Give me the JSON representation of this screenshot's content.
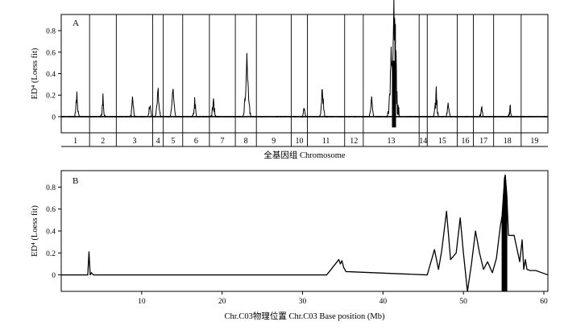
{
  "chart_data": [
    {
      "panel": "A",
      "type": "line",
      "ylabel": "ED⁴ (Loess fit)",
      "xlabel": "全基因组 Chromosome",
      "ylim": [
        -0.15,
        0.95
      ],
      "yticks": [
        0,
        0.2,
        0.4,
        0.6,
        0.8
      ],
      "ytick_labels": [
        "0",
        "0.2",
        "0.4",
        "0.6",
        "0.8"
      ],
      "chromosomes": [
        "1",
        "2",
        "3",
        "4",
        "5",
        "6",
        "7",
        "8",
        "9",
        "10",
        "11",
        "12",
        "13",
        "14",
        "15",
        "16",
        "17",
        "18",
        "19"
      ],
      "chromosome_relative_widths": [
        35,
        33,
        45,
        13,
        24,
        33,
        32,
        26,
        43,
        20,
        46,
        23,
        69,
        10,
        37,
        20,
        25,
        34,
        33
      ],
      "peaks": [
        {
          "chr": "1",
          "pos": 0.55,
          "value": 0.2,
          "noise": 0.05
        },
        {
          "chr": "2",
          "pos": 0.5,
          "value": 0.16,
          "noise": 0.06
        },
        {
          "chr": "3",
          "pos": 0.45,
          "value": 0.16,
          "noise": 0.06
        },
        {
          "chr": "3",
          "pos": 0.92,
          "value": 0.12,
          "noise": 0.04
        },
        {
          "chr": "4",
          "pos": 0.5,
          "value": 0.27,
          "noise": 0.05
        },
        {
          "chr": "5",
          "pos": 0.5,
          "value": 0.3,
          "noise": 0.04
        },
        {
          "chr": "6",
          "pos": 0.45,
          "value": 0.15,
          "noise": 0.05
        },
        {
          "chr": "7",
          "pos": 0.15,
          "value": 0.17,
          "noise": 0.07
        },
        {
          "chr": "8",
          "pos": 0.55,
          "value": 0.53,
          "noise": 0.08
        },
        {
          "chr": "10",
          "pos": 0.8,
          "value": 0.08,
          "noise": 0.03
        },
        {
          "chr": "11",
          "pos": 0.4,
          "value": 0.28,
          "noise": 0.07
        },
        {
          "chr": "13",
          "pos": 0.15,
          "value": 0.2,
          "noise": 0.04
        },
        {
          "chr": "13",
          "pos": 0.5,
          "value": 0.55,
          "noise": 0.15
        },
        {
          "chr": "13",
          "pos": 0.55,
          "value": 0.86,
          "noise": 0.4
        },
        {
          "chr": "15",
          "pos": 0.3,
          "value": 0.22,
          "noise": 0.08
        },
        {
          "chr": "15",
          "pos": 0.7,
          "value": 0.14,
          "noise": 0.04
        },
        {
          "chr": "17",
          "pos": 0.4,
          "value": 0.1,
          "noise": 0.03
        },
        {
          "chr": "18",
          "pos": 0.6,
          "value": 0.09,
          "noise": 0.04
        }
      ]
    },
    {
      "panel": "B",
      "type": "line",
      "ylabel": "ED⁴ (Loess fit)",
      "xlabel": "Chr.C03物理位置 Chr.C03 Base position (Mb)",
      "xlim": [
        0,
        60.5
      ],
      "ylim": [
        -0.15,
        0.95
      ],
      "xticks": [
        10,
        20,
        30,
        40,
        50,
        60
      ],
      "xtick_labels": [
        "10",
        "20",
        "30",
        "40",
        "50",
        "60"
      ],
      "yticks": [
        0,
        0.2,
        0.4,
        0.6,
        0.8
      ],
      "ytick_labels": [
        "0",
        "0.2",
        "0.4",
        "0.6",
        "0.8"
      ],
      "x": [
        0,
        3.3,
        3.45,
        3.6,
        3.75,
        4,
        5,
        33,
        34.3,
        34.5,
        34.7,
        34.9,
        35.1,
        35.4,
        45.5,
        46.4,
        46.9,
        47.3,
        47.9,
        48.4,
        49.1,
        49.6,
        50,
        50.5,
        51,
        51.5,
        52,
        52.5,
        53,
        53.6,
        54.1,
        54.6,
        55,
        55.1,
        55.2,
        55.4,
        55.6,
        55.9,
        56.3,
        57,
        57.3,
        57.5,
        57.7,
        57.9,
        58.3,
        59,
        60.5
      ],
      "y": [
        0,
        0,
        0.21,
        0,
        0.02,
        0,
        0,
        0,
        0.12,
        0.14,
        0.1,
        0.13,
        0.07,
        0.03,
        0,
        0.23,
        0.05,
        0.22,
        0.58,
        0.14,
        0.2,
        0.52,
        0.2,
        -0.15,
        0.1,
        0.4,
        0.2,
        0.05,
        0.12,
        0.02,
        0.15,
        0.45,
        0.62,
        0.88,
        0.91,
        0.72,
        0.36,
        0.36,
        0.36,
        0.12,
        0.32,
        0.05,
        0.14,
        0.05,
        0.04,
        0.04,
        0
      ]
    }
  ]
}
